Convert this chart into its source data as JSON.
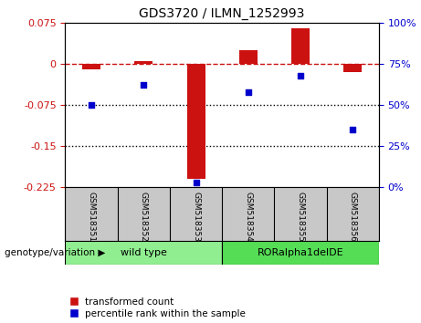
{
  "title": "GDS3720 / ILMN_1252993",
  "samples": [
    "GSM518351",
    "GSM518352",
    "GSM518353",
    "GSM518354",
    "GSM518355",
    "GSM518356"
  ],
  "red_values": [
    -0.01,
    0.005,
    -0.21,
    0.025,
    0.065,
    -0.015
  ],
  "blue_values": [
    50,
    62,
    3,
    58,
    68,
    35
  ],
  "ylim_left": [
    -0.225,
    0.075
  ],
  "ylim_right": [
    0,
    100
  ],
  "yticks_left": [
    0.075,
    0,
    -0.075,
    -0.15,
    -0.225
  ],
  "yticks_right": [
    100,
    75,
    50,
    25,
    0
  ],
  "groups": [
    {
      "label": "wild type",
      "samples": [
        0,
        1,
        2
      ],
      "color": "#90EE90"
    },
    {
      "label": "RORalpha1delDE",
      "samples": [
        3,
        4,
        5
      ],
      "color": "#55DD55"
    }
  ],
  "group_label": "genotype/variation",
  "legend_red": "transformed count",
  "legend_blue": "percentile rank within the sample",
  "bar_color": "#CC1111",
  "dot_color": "#0000CC",
  "dashed_line_color": "#CC1111",
  "dotted_line_color": "#000000",
  "background_plot": "#FFFFFF",
  "sample_box_color": "#C8C8C8",
  "bar_width": 0.35
}
